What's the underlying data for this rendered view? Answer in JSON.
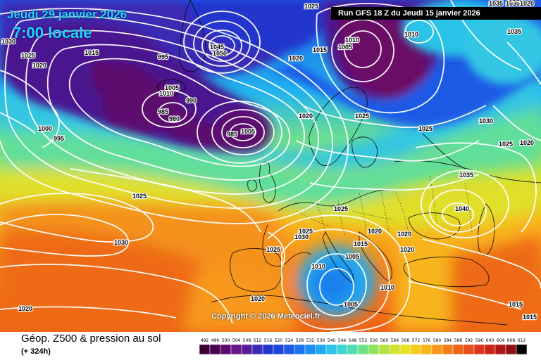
{
  "header": {
    "date": "Jeudi 29 janvier 2026",
    "time": "7:00 locale",
    "run": "Run GFS 18 Z du Jeudi 15 janvier 2026"
  },
  "copyright": "Copyright © 2026 Meteociel.fr",
  "footer": {
    "title": "Géop. Z500 & pression au sol",
    "subtitle": "(+ 324h)"
  },
  "scale": {
    "labels": [
      "492",
      "496",
      "500",
      "504",
      "508",
      "512",
      "516",
      "520",
      "524",
      "528",
      "532",
      "536",
      "540",
      "544",
      "548",
      "552",
      "556",
      "560",
      "564",
      "568",
      "572",
      "576",
      "580",
      "584",
      "588",
      "592",
      "596",
      "600",
      "604",
      "608",
      "612"
    ],
    "colors": [
      "#3a0033",
      "#4a0050",
      "#5c0a6e",
      "#6a1488",
      "#5a1c9c",
      "#3a2ab4",
      "#2236cc",
      "#1a44dc",
      "#1a5ae6",
      "#1a74ee",
      "#1c90f2",
      "#22aaf0",
      "#2cc4e8",
      "#3cd6d2",
      "#50dcb0",
      "#70e088",
      "#92e262",
      "#b4e244",
      "#d2e230",
      "#eae024",
      "#f4cc1e",
      "#f8b41c",
      "#f8981a",
      "#f47e18",
      "#ee6418",
      "#e84c18",
      "#de3418",
      "#cc2418",
      "#b01616",
      "#901010",
      "#000000"
    ]
  },
  "isobar_labels": [
    {
      "text": "1030",
      "id": "a"
    },
    {
      "text": "1025",
      "id": "b"
    },
    {
      "text": "1020",
      "id": "c"
    },
    {
      "text": "1015",
      "id": "d"
    },
    {
      "text": "995",
      "id": "e"
    },
    {
      "text": "1000",
      "id": "f"
    },
    {
      "text": "995",
      "id": "g"
    },
    {
      "text": "1010",
      "id": "h"
    },
    {
      "text": "1005",
      "id": "i"
    },
    {
      "text": "990",
      "id": "j"
    },
    {
      "text": "985",
      "id": "k"
    },
    {
      "text": "980",
      "id": "l"
    },
    {
      "text": "1045",
      "id": "m"
    },
    {
      "text": "1050",
      "id": "n"
    },
    {
      "text": "1025",
      "id": "o"
    },
    {
      "text": "1020",
      "id": "p"
    },
    {
      "text": "1015",
      "id": "q"
    },
    {
      "text": "1010",
      "id": "r"
    },
    {
      "text": "1005",
      "id": "s"
    },
    {
      "text": "1010",
      "id": "t"
    },
    {
      "text": "1025",
      "id": "u"
    },
    {
      "text": "1035",
      "id": "v"
    },
    {
      "text": "1035",
      "id": "w"
    },
    {
      "text": "1030",
      "id": "x"
    },
    {
      "text": "1025",
      "id": "y"
    },
    {
      "text": "1020",
      "id": "z"
    },
    {
      "text": "1035",
      "id": "aa"
    },
    {
      "text": "1040",
      "id": "ab"
    },
    {
      "text": "1025",
      "id": "ac"
    },
    {
      "text": "1030",
      "id": "ad"
    },
    {
      "text": "1025",
      "id": "ae"
    },
    {
      "text": "1025",
      "id": "af"
    },
    {
      "text": "1020",
      "id": "ag"
    },
    {
      "text": "1020",
      "id": "ah"
    },
    {
      "text": "1020",
      "id": "ai"
    },
    {
      "text": "1015",
      "id": "aj"
    },
    {
      "text": "1010",
      "id": "ak"
    },
    {
      "text": "1005",
      "id": "al"
    },
    {
      "text": "1005",
      "id": "am"
    },
    {
      "text": "1010",
      "id": "an"
    },
    {
      "text": "1020",
      "id": "ao"
    },
    {
      "text": "1020",
      "id": "ap"
    },
    {
      "text": "1015",
      "id": "aq"
    },
    {
      "text": "1015",
      "id": "ar"
    },
    {
      "text": "1035",
      "id": "as"
    },
    {
      "text": "1040",
      "id": "at"
    },
    {
      "text": "1025",
      "id": "au"
    },
    {
      "text": "1020",
      "id": "av"
    },
    {
      "text": "1030",
      "id": "aw"
    },
    {
      "text": "1025",
      "id": "ax"
    },
    {
      "text": "1020",
      "id": "ay"
    },
    {
      "text": "985",
      "id": "az"
    },
    {
      "text": "1005",
      "id": "ba"
    }
  ]
}
